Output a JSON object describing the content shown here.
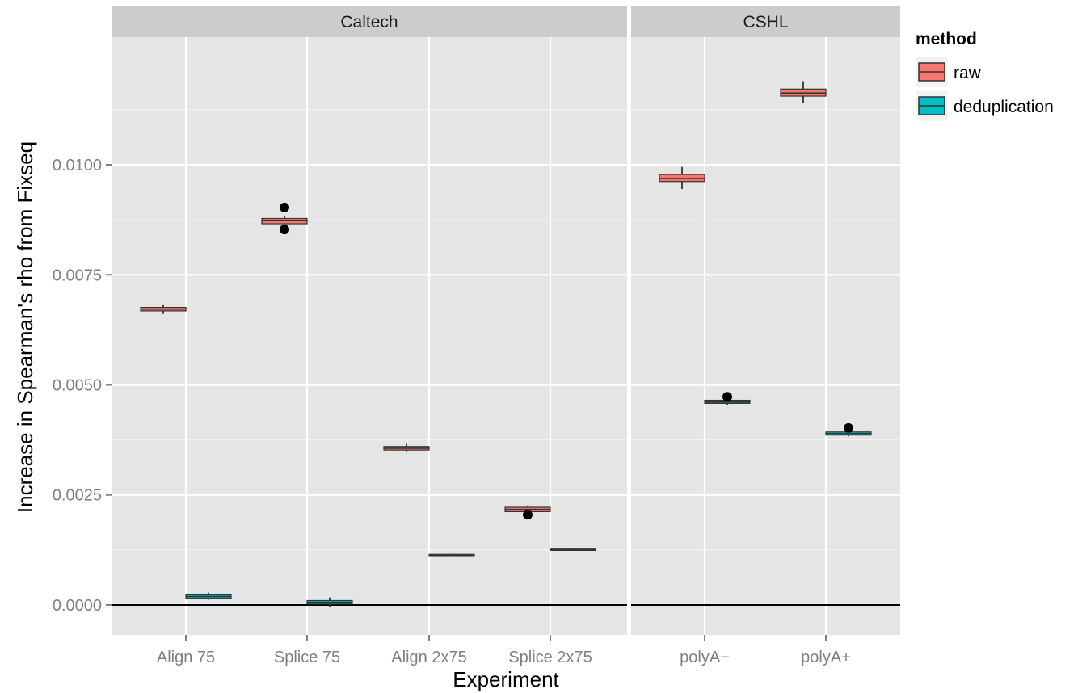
{
  "chart_data": {
    "type": "boxplot",
    "xlabel": "Experiment",
    "ylabel": "Increase in Spearman's rho from Fixseq",
    "ylim": [
      -0.00068,
      0.0129
    ],
    "yticks": [
      {
        "value": 0.0,
        "label": "0.0000"
      },
      {
        "value": 0.0025,
        "label": "0.0025"
      },
      {
        "value": 0.005,
        "label": "0.0050"
      },
      {
        "value": 0.0075,
        "label": "0.0075"
      },
      {
        "value": 0.01,
        "label": "0.0100"
      }
    ],
    "hline": 0,
    "grid": true,
    "legend": {
      "title": "method",
      "position": "right",
      "entries": [
        {
          "key": "raw",
          "label": "raw",
          "color": "#F8766D"
        },
        {
          "key": "dedup",
          "label": "deduplication",
          "color": "#00BFC4"
        }
      ]
    },
    "facets": [
      {
        "name": "Caltech",
        "categories": [
          "Align 75",
          "Splice 75",
          "Align 2x75",
          "Splice 2x75"
        ],
        "boxes": [
          {
            "category": 0,
            "method": "raw",
            "lower_whisker": 0.00661,
            "q1": 0.00668,
            "median": 0.00672,
            "q3": 0.00676,
            "upper_whisker": 0.00681,
            "outliers": []
          },
          {
            "category": 0,
            "method": "dedup",
            "lower_whisker": 0.00012,
            "q1": 0.00015,
            "median": 0.00019,
            "q3": 0.00023,
            "upper_whisker": 0.00028,
            "outliers": []
          },
          {
            "category": 1,
            "method": "raw",
            "lower_whisker": 0.0086,
            "q1": 0.00866,
            "median": 0.00873,
            "q3": 0.00878,
            "upper_whisker": 0.00884,
            "outliers": [
              0.00903,
              0.00853
            ]
          },
          {
            "category": 1,
            "method": "dedup",
            "lower_whisker": -5e-05,
            "q1": 2e-05,
            "median": 6e-05,
            "q3": 0.0001,
            "upper_whisker": 0.00017,
            "outliers": []
          },
          {
            "category": 2,
            "method": "raw",
            "lower_whisker": 0.00349,
            "q1": 0.00352,
            "median": 0.00356,
            "q3": 0.0036,
            "upper_whisker": 0.00366,
            "outliers": []
          },
          {
            "category": 2,
            "method": "dedup",
            "lower_whisker": 0.00111,
            "q1": 0.00112,
            "median": 0.00113,
            "q3": 0.00115,
            "upper_whisker": 0.00116,
            "outliers": []
          },
          {
            "category": 3,
            "method": "raw",
            "lower_whisker": 0.00211,
            "q1": 0.00212,
            "median": 0.00217,
            "q3": 0.00222,
            "upper_whisker": 0.00226,
            "outliers": [
              0.00205
            ]
          },
          {
            "category": 3,
            "method": "dedup",
            "lower_whisker": 0.00124,
            "q1": 0.00124,
            "median": 0.00125,
            "q3": 0.00127,
            "upper_whisker": 0.00128,
            "outliers": []
          }
        ]
      },
      {
        "name": "CSHL",
        "categories": [
          "polyA−",
          "polyA+"
        ],
        "boxes": [
          {
            "category": 0,
            "method": "raw",
            "lower_whisker": 0.00945,
            "q1": 0.00962,
            "median": 0.00969,
            "q3": 0.00978,
            "upper_whisker": 0.00995,
            "outliers": []
          },
          {
            "category": 0,
            "method": "dedup",
            "lower_whisker": 0.00455,
            "q1": 0.00458,
            "median": 0.00461,
            "q3": 0.00465,
            "upper_whisker": 0.00467,
            "outliers": [
              0.00473
            ]
          },
          {
            "category": 1,
            "method": "raw",
            "lower_whisker": 0.0114,
            "q1": 0.01156,
            "median": 0.01163,
            "q3": 0.01172,
            "upper_whisker": 0.0119,
            "outliers": []
          },
          {
            "category": 1,
            "method": "dedup",
            "lower_whisker": 0.00383,
            "q1": 0.00386,
            "median": 0.00389,
            "q3": 0.00393,
            "upper_whisker": 0.00396,
            "outliers": [
              0.00402
            ]
          }
        ]
      }
    ]
  }
}
